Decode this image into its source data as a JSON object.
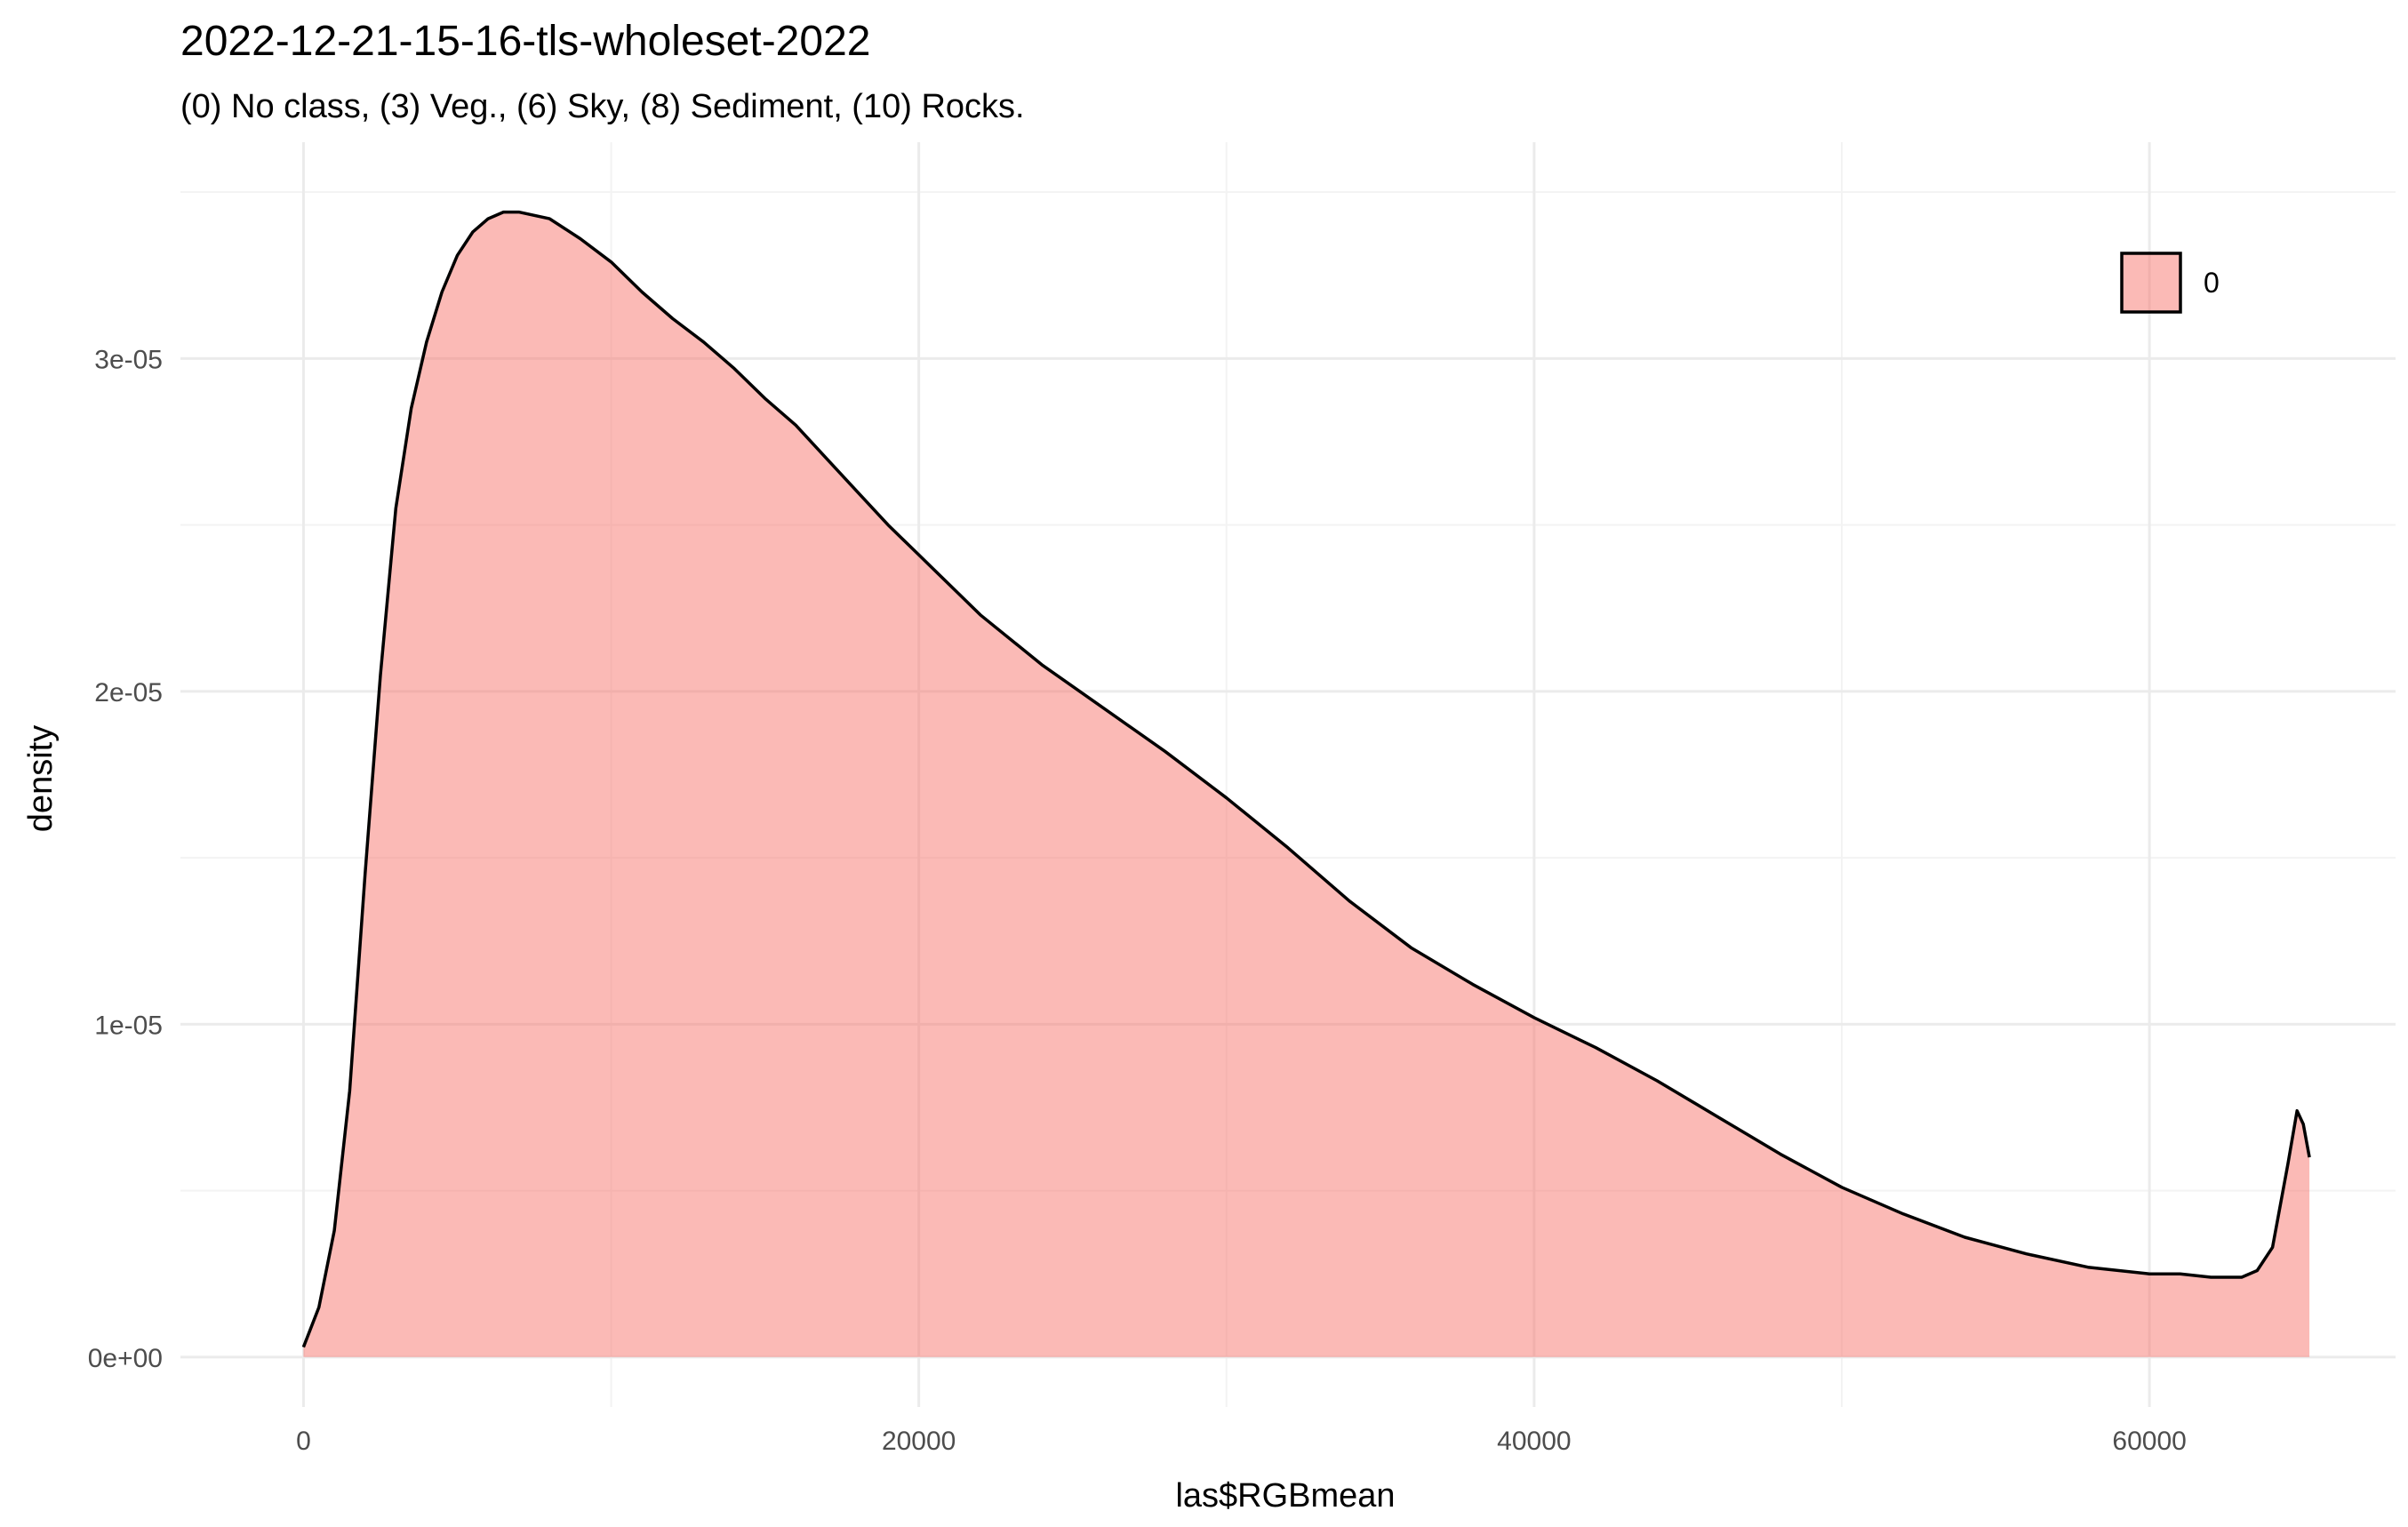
{
  "chart_data": {
    "type": "area",
    "title": "2022-12-21-15-16-tls-wholeset-2022",
    "subtitle": "(0) No class, (3) Veg., (6) Sky, (8) Sediment, (10) Rocks.",
    "xlabel": "las$RGBmean",
    "ylabel": "density",
    "xlim": [
      -4000,
      68000
    ],
    "ylim": [
      -1.5e-06,
      3.65e-05
    ],
    "x_ticks": [
      0,
      20000,
      40000,
      60000
    ],
    "x_tick_labels": [
      "0",
      "20000",
      "40000",
      "60000"
    ],
    "y_ticks": [
      0,
      1e-05,
      2e-05,
      3e-05
    ],
    "y_tick_labels": [
      "0e+00",
      "1e-05",
      "2e-05",
      "3e-05"
    ],
    "grid": true,
    "legend": {
      "position": "top-right",
      "entries": [
        {
          "label": "0",
          "color": "#f8766d"
        }
      ]
    },
    "series": [
      {
        "name": "0",
        "fill": "#f8766d",
        "fill_opacity": 0.5,
        "line_color": "#000000",
        "x": [
          0,
          500,
          1000,
          1500,
          2000,
          2500,
          3000,
          3500,
          4000,
          4500,
          5000,
          5500,
          6000,
          6500,
          7000,
          8000,
          9000,
          10000,
          11000,
          12000,
          13000,
          14000,
          15000,
          16000,
          17000,
          18000,
          19000,
          20000,
          22000,
          24000,
          26000,
          28000,
          30000,
          32000,
          34000,
          36000,
          38000,
          40000,
          42000,
          44000,
          46000,
          48000,
          50000,
          52000,
          54000,
          56000,
          58000,
          60000,
          61000,
          62000,
          63000,
          63500,
          64000,
          64500,
          64800,
          65000,
          65200
        ],
        "y": [
          3e-07,
          1.5e-06,
          3.8e-06,
          8e-06,
          1.45e-05,
          2.05e-05,
          2.55e-05,
          2.85e-05,
          3.05e-05,
          3.2e-05,
          3.31e-05,
          3.38e-05,
          3.42e-05,
          3.44e-05,
          3.44e-05,
          3.42e-05,
          3.36e-05,
          3.29e-05,
          3.2e-05,
          3.12e-05,
          3.05e-05,
          2.97e-05,
          2.88e-05,
          2.8e-05,
          2.7e-05,
          2.6e-05,
          2.5e-05,
          2.41e-05,
          2.23e-05,
          2.08e-05,
          1.95e-05,
          1.82e-05,
          1.68e-05,
          1.53e-05,
          1.37e-05,
          1.23e-05,
          1.12e-05,
          1.02e-05,
          9.3e-06,
          8.3e-06,
          7.2e-06,
          6.1e-06,
          5.1e-06,
          4.3e-06,
          3.6e-06,
          3.1e-06,
          2.7e-06,
          2.5e-06,
          2.5e-06,
          2.4e-06,
          2.4e-06,
          2.6e-06,
          3.3e-06,
          5.8e-06,
          7.4e-06,
          7e-06,
          6e-06
        ]
      }
    ]
  }
}
